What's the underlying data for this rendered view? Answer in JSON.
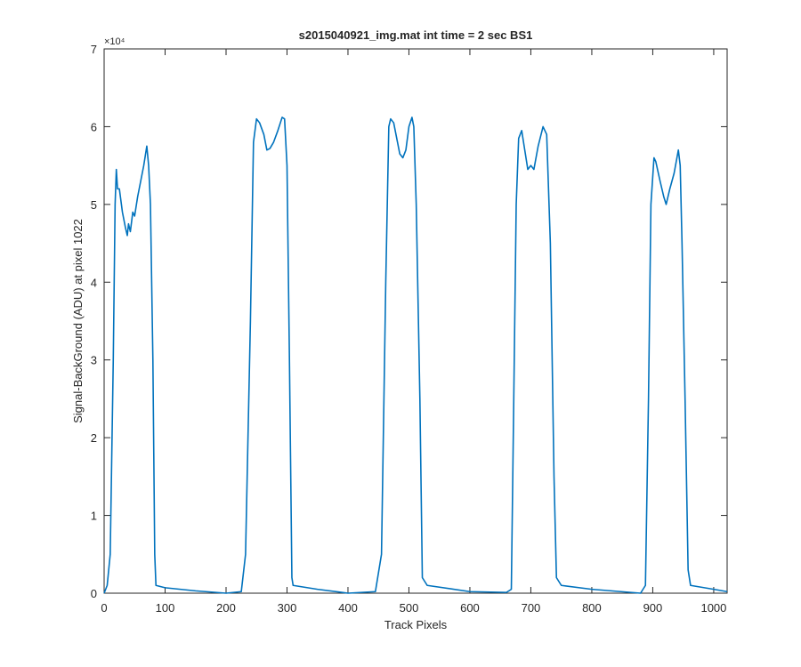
{
  "chart_data": {
    "type": "line",
    "title": "s2015040921_img.mat int time = 2 sec   BS1",
    "x_label": "Track Pixels",
    "y_label": "Signal-BackGround (ADU) at pixel 1022",
    "y_multiplier": "×10⁴",
    "xlim": [
      0,
      1022
    ],
    "xticks": [
      0,
      100,
      200,
      300,
      400,
      500,
      600,
      700,
      800,
      900,
      1000
    ],
    "ylim": [
      0,
      7
    ],
    "yticks": [
      0,
      1,
      2,
      3,
      4,
      5,
      6,
      7
    ],
    "series": [
      {
        "color": "#0072bd",
        "x": [
          0,
          5,
          10,
          15,
          18,
          20,
          22,
          25,
          30,
          35,
          38,
          40,
          43,
          47,
          50,
          55,
          60,
          65,
          70,
          73,
          76,
          80,
          83,
          85,
          100,
          150,
          200,
          225,
          232,
          240,
          245,
          250,
          255,
          262,
          267,
          272,
          278,
          285,
          292,
          296,
          300,
          304,
          308,
          310,
          350,
          400,
          445,
          455,
          462,
          467,
          470,
          475,
          480,
          485,
          490,
          495,
          500,
          505,
          508,
          512,
          518,
          522,
          530,
          600,
          660,
          668,
          672,
          676,
          680,
          685,
          690,
          695,
          700,
          705,
          712,
          720,
          726,
          732,
          738,
          742,
          750,
          800,
          880,
          888,
          893,
          897,
          902,
          905,
          912,
          918,
          922,
          928,
          935,
          942,
          945,
          948,
          953,
          958,
          962,
          1000,
          1022
        ],
        "values": [
          0.0,
          0.1,
          0.5,
          3.0,
          5.0,
          5.45,
          5.2,
          5.2,
          4.9,
          4.7,
          4.6,
          4.75,
          4.65,
          4.9,
          4.85,
          5.1,
          5.3,
          5.5,
          5.75,
          5.5,
          5.0,
          3.0,
          0.5,
          0.1,
          0.07,
          0.03,
          0.0,
          0.02,
          0.5,
          3.5,
          5.8,
          6.1,
          6.05,
          5.9,
          5.7,
          5.72,
          5.8,
          5.95,
          6.12,
          6.1,
          5.5,
          3.0,
          0.2,
          0.1,
          0.05,
          0.0,
          0.02,
          0.5,
          4.0,
          6.0,
          6.1,
          6.05,
          5.85,
          5.65,
          5.6,
          5.7,
          6.0,
          6.12,
          6.0,
          5.0,
          2.5,
          0.2,
          0.1,
          0.02,
          0.01,
          0.05,
          2.5,
          5.0,
          5.85,
          5.95,
          5.7,
          5.45,
          5.5,
          5.45,
          5.75,
          6.0,
          5.9,
          4.5,
          1.5,
          0.2,
          0.1,
          0.05,
          0.0,
          0.1,
          2.5,
          5.0,
          5.6,
          5.55,
          5.3,
          5.1,
          5.0,
          5.2,
          5.4,
          5.7,
          5.5,
          4.5,
          2.5,
          0.3,
          0.1,
          0.05,
          0.02
        ]
      }
    ]
  }
}
